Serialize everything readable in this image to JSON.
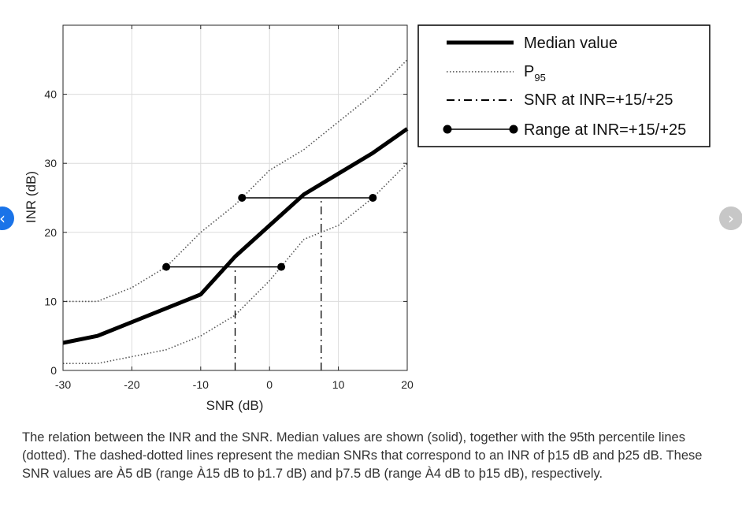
{
  "nav": {
    "prev_symbol": "‹",
    "next_symbol": "›"
  },
  "chart_data": {
    "type": "line",
    "xlabel": "SNR (dB)",
    "ylabel": "INR (dB)",
    "xlim": [
      -30,
      20
    ],
    "ylim": [
      0,
      50
    ],
    "xticks": [
      -30,
      -20,
      -10,
      0,
      10,
      20
    ],
    "yticks": [
      0,
      10,
      20,
      30,
      40
    ],
    "grid": true,
    "legend_position": "outside-right-top",
    "series": [
      {
        "name": "Median value",
        "style": "solid-thick",
        "color": "#000000",
        "x": [
          -30,
          -25,
          -20,
          -10,
          -5,
          0,
          5,
          10,
          15,
          20
        ],
        "y": [
          4,
          5,
          7,
          11,
          16.5,
          21,
          25.5,
          28.5,
          31.5,
          35
        ]
      },
      {
        "name": "P95",
        "style": "dotted",
        "color": "#555555",
        "x": [
          -30,
          -25,
          -20,
          -15,
          -10,
          -5,
          0,
          5,
          10,
          15,
          20
        ],
        "y": [
          10,
          10,
          12,
          15,
          20,
          24,
          29,
          32,
          36,
          40,
          45
        ]
      },
      {
        "name": "P95 (lower)",
        "style": "dotted",
        "color": "#555555",
        "x": [
          -30,
          -25,
          -20,
          -15,
          -10,
          -5,
          0,
          2.5,
          5,
          10,
          15,
          20
        ],
        "y": [
          1,
          1,
          2,
          3,
          5,
          8,
          13,
          16,
          19,
          21,
          25,
          30
        ]
      }
    ],
    "reference_lines": [
      {
        "name": "SNR at INR=+15/+25",
        "style": "dashdot",
        "x": -5,
        "y_from": 0,
        "y_to": 15
      },
      {
        "name": "SNR at INR=+15/+25",
        "style": "dashdot",
        "x": 7.5,
        "y_from": 0,
        "y_to": 25
      }
    ],
    "ranges": [
      {
        "name": "Range at INR=+15/+25",
        "y": 15,
        "x_from": -15,
        "x_to": 1.7
      },
      {
        "name": "Range at INR=+15/+25",
        "y": 25,
        "x_from": -4,
        "x_to": 15
      }
    ],
    "legend": {
      "median": "Median value",
      "p95_main": "P",
      "p95_sub": "95",
      "snr": "SNR at INR=+15/+25",
      "range": "Range at INR=+15/+25"
    }
  },
  "caption": "The relation between the INR and the SNR. Median values are shown (solid), together with the 95th percentile lines (dotted). The dashed-dotted lines represent the median SNRs that correspond to an INR of þ15 dB and þ25 dB. These SNR values are À5 dB (range À15 dB to þ1.7 dB) and þ7.5 dB (range À4 dB to þ15 dB), respectively."
}
